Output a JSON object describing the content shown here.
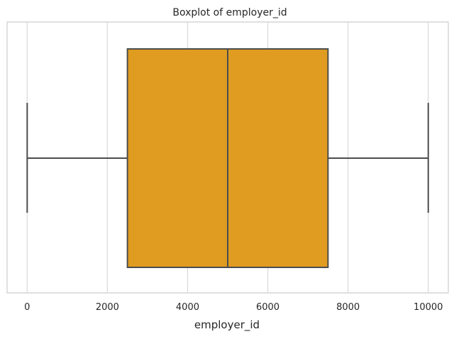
{
  "chart_data": {
    "type": "boxplot",
    "title": "Boxplot of employer_id",
    "xlabel": "employer_id",
    "ylabel": "",
    "xlim": [
      -500,
      10500
    ],
    "xticks": [
      0,
      2000,
      4000,
      6000,
      8000,
      10000
    ],
    "xtick_labels": [
      "0",
      "2000",
      "4000",
      "6000",
      "8000",
      "10000"
    ],
    "grid": true,
    "box": {
      "min": 1,
      "q1": 2500,
      "median": 5000,
      "q3": 7500,
      "max": 10000
    },
    "colors": {
      "box_fill": "#e09c20",
      "lines": "#4d4d4d",
      "grid": "#d9d9d9",
      "frame": "#cccccc"
    }
  }
}
